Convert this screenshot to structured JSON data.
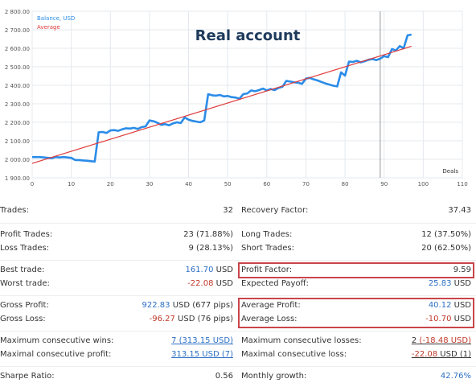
{
  "chart_data": {
    "type": "line",
    "title": "Real account",
    "xlabel": "Deals",
    "ylabel": "",
    "xlim": [
      0,
      110
    ],
    "ylim": [
      1900,
      2800
    ],
    "xticks": [
      "0",
      "10",
      "20",
      "30",
      "40",
      "50",
      "60",
      "70",
      "80",
      "90",
      "100",
      "110"
    ],
    "yticks": [
      "1 900.00",
      "2 000.00",
      "2 100.00",
      "2 200.00",
      "2 300.00",
      "2 400.00",
      "2 500.00",
      "2 600.00",
      "2 700.00",
      "2 800.00"
    ],
    "vline_x": 89,
    "series": [
      {
        "name": "Balance, USD",
        "color": "#2b8ce8",
        "x": [
          0,
          1,
          2,
          3,
          4,
          5,
          6,
          7,
          8,
          9,
          10,
          11,
          12,
          13,
          14,
          15,
          16,
          17,
          18,
          19,
          20,
          21,
          22,
          23,
          24,
          25,
          26,
          27,
          28,
          29,
          30,
          31,
          32,
          33,
          34,
          35,
          36,
          37,
          38,
          39,
          40,
          41,
          42,
          43,
          44,
          45,
          46,
          47,
          48,
          49,
          50,
          51,
          52,
          53,
          54,
          55,
          56,
          57,
          58,
          59,
          60,
          61,
          62,
          63,
          64,
          65,
          66,
          67,
          68,
          69,
          70,
          71,
          72,
          73,
          74,
          75,
          76,
          77,
          78,
          79,
          80,
          81,
          82,
          83,
          84,
          85,
          86,
          87,
          88,
          89,
          90,
          91,
          92,
          93,
          94,
          95,
          96,
          97
        ],
        "y": [
          2012,
          2012,
          2012,
          2010,
          2008,
          2006,
          2012,
          2010,
          2012,
          2010,
          2008,
          1996,
          1996,
          1994,
          1992,
          1990,
          1988,
          2146,
          2148,
          2142,
          2156,
          2158,
          2154,
          2162,
          2168,
          2166,
          2170,
          2164,
          2174,
          2178,
          2210,
          2206,
          2198,
          2186,
          2190,
          2184,
          2194,
          2200,
          2196,
          2226,
          2214,
          2208,
          2204,
          2200,
          2210,
          2352,
          2346,
          2344,
          2348,
          2340,
          2342,
          2336,
          2334,
          2328,
          2352,
          2356,
          2372,
          2368,
          2374,
          2382,
          2372,
          2380,
          2374,
          2386,
          2392,
          2424,
          2420,
          2416,
          2414,
          2408,
          2436,
          2440,
          2432,
          2426,
          2418,
          2410,
          2404,
          2398,
          2394,
          2470,
          2452,
          2528,
          2526,
          2532,
          2524,
          2530,
          2538,
          2542,
          2536,
          2544,
          2558,
          2552,
          2596,
          2588,
          2612,
          2600,
          2670,
          2674
        ]
      },
      {
        "name": "Average",
        "color": "#e03a3a",
        "x": [
          0,
          97
        ],
        "y": [
          1978,
          2611
        ]
      }
    ],
    "legend": "top-left",
    "grid": true
  },
  "stats": [
    {
      "left_label": "Trades:",
      "left_value": "32",
      "right_label": "Recovery Factor:",
      "right_value": "37.43"
    },
    {
      "left_label": "Profit Trades:",
      "left_value": "23 (71.88%)",
      "right_label": "Long Trades:",
      "right_value": "12 (37.50%)"
    },
    {
      "left_label": "Loss Trades:",
      "left_value": "9 (28.13%)",
      "right_label": "Short Trades:",
      "right_value": "20 (62.50%)"
    },
    {
      "left_label": "Best trade:",
      "left_value_num": "161.70",
      "left_value_unit": " USD",
      "right_label": "Profit Factor:",
      "right_value": "9.59"
    },
    {
      "left_label": "Worst trade:",
      "left_value_num": "-22.08",
      "left_value_unit": " USD",
      "right_label": "Expected Payoff:",
      "right_value_num": "25.83",
      "right_value_unit": " USD"
    },
    {
      "left_label": "Gross Profit:",
      "left_value_num": "922.83",
      "left_value_unit": " USD (677 pips)",
      "right_label": "Average Profit:",
      "right_value_num": "40.12",
      "right_value_unit": " USD"
    },
    {
      "left_label": "Gross Loss:",
      "left_value_num": "-96.27",
      "left_value_unit": " USD (76 pips)",
      "right_label": "Average Loss:",
      "right_value_num": "-10.70",
      "right_value_unit": " USD"
    },
    {
      "left_label": "Maximum consecutive wins:",
      "left_value": "7 (313.15 USD)",
      "right_label": "Maximum consecutive losses:",
      "right_value_num": "2",
      "right_value_unit": " (-18.48 USD)"
    },
    {
      "left_label": "Maximal consecutive profit:",
      "left_value": "313.15 USD (7)",
      "right_label": "Maximal consecutive loss:",
      "right_value_num": "-22.08",
      "right_value_unit": " USD (1)"
    },
    {
      "left_label": "Sharpe Ratio:",
      "left_value": "0.56",
      "right_label": "Monthly growth:",
      "right_value": "42.76%"
    }
  ],
  "colors": {
    "accent_blue": "#2c6fc4",
    "negative_red": "#c0392b",
    "highlight_border": "#c9454a"
  }
}
